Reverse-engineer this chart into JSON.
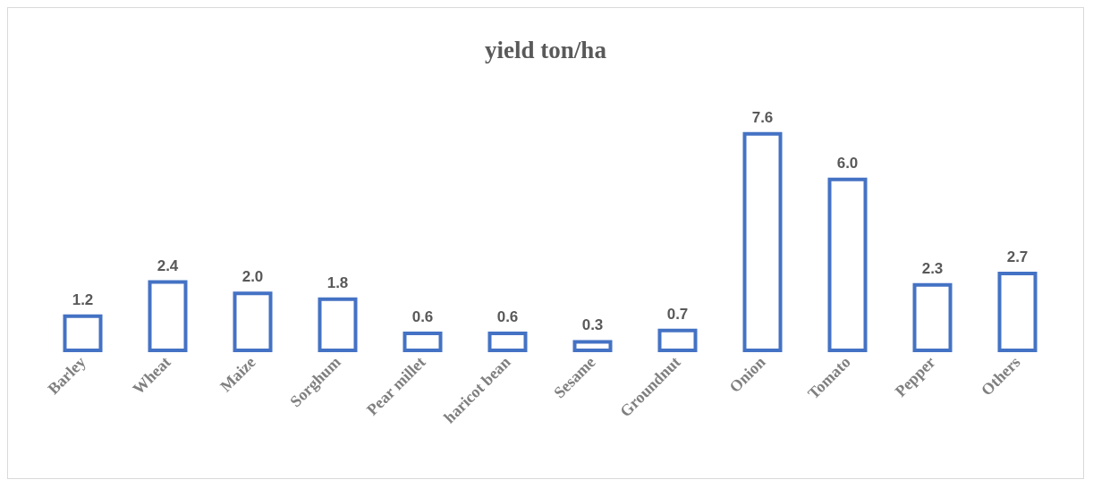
{
  "chart_data": {
    "type": "bar",
    "title": "yield ton/ha",
    "categories": [
      "Barley",
      "Wheat",
      "Maize",
      "Sorghum",
      "Pear millet",
      "haricot bean",
      "Sesame",
      "Groundnut",
      "Onion",
      "Tomato",
      "Pepper",
      "Others"
    ],
    "values": [
      1.2,
      2.4,
      2.0,
      1.8,
      0.6,
      0.6,
      0.3,
      0.7,
      7.6,
      6.0,
      2.3,
      2.7
    ],
    "value_labels": [
      "1.2",
      "2.4",
      "2.0",
      "1.8",
      "0.6",
      "0.6",
      "0.3",
      "0.7",
      "7.6",
      "6.0",
      "2.3",
      "2.7"
    ],
    "color": "#4472c4",
    "data_labels": true
  }
}
